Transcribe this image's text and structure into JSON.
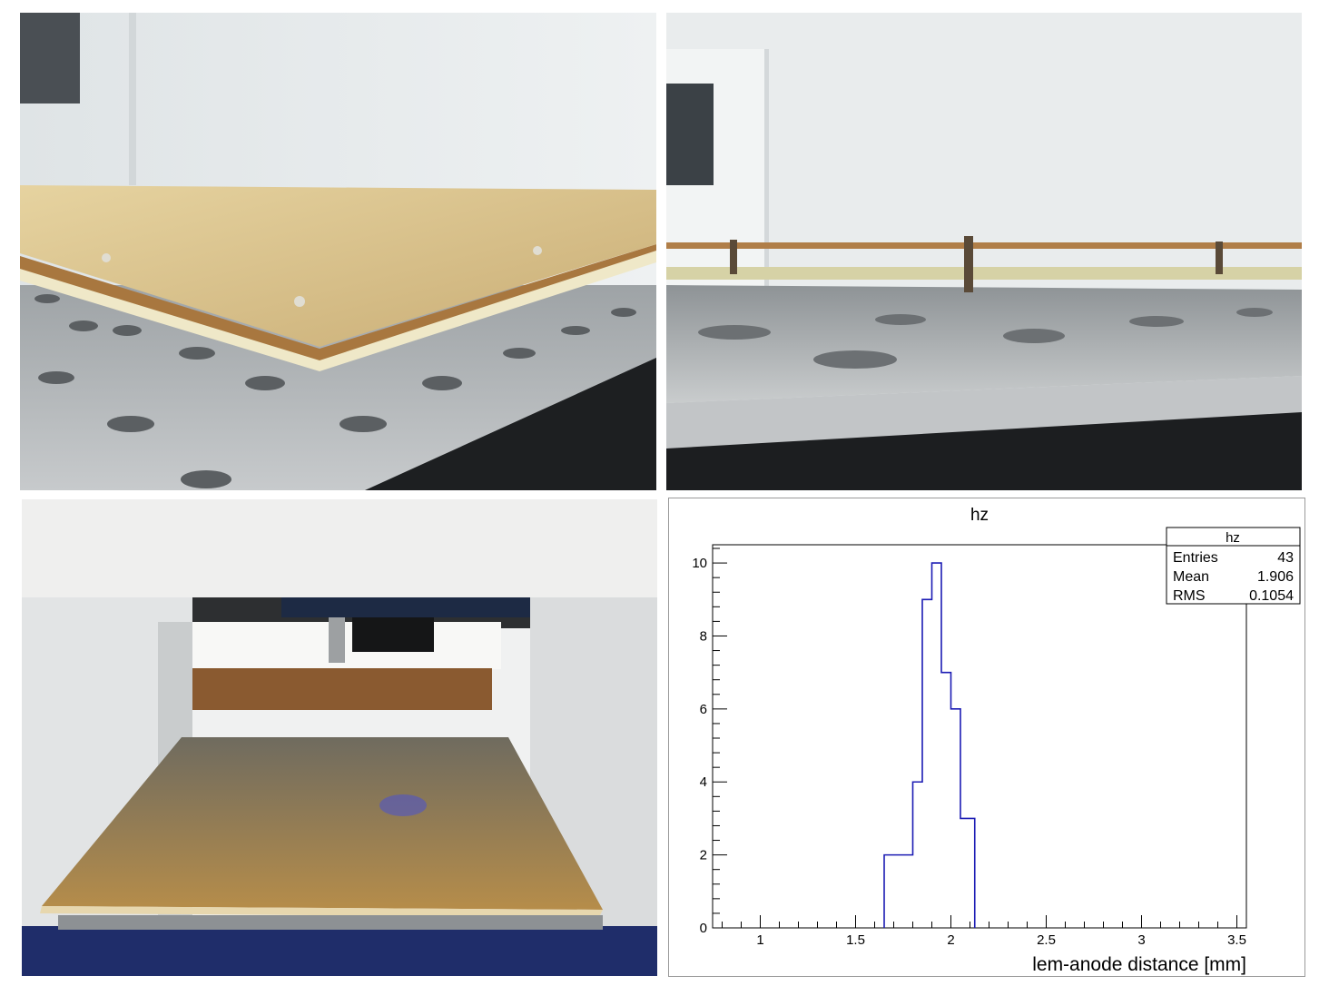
{
  "photos": [
    {
      "description_id": "lem-anode-corner-closeup"
    },
    {
      "description_id": "lem-anode-side-view"
    },
    {
      "description_id": "lem-anode-on-measuring-machine"
    }
  ],
  "chart_data": {
    "type": "histogram",
    "title": "hz",
    "xlabel": "lem-anode distance [mm]",
    "ylabel": "",
    "xlim": [
      0.75,
      3.55
    ],
    "ylim": [
      0,
      10.5
    ],
    "x_ticks": [
      "1",
      "1.5",
      "2",
      "2.5",
      "3",
      "3.5"
    ],
    "y_ticks": [
      "0",
      "2",
      "4",
      "6",
      "8",
      "10"
    ],
    "bin_edges": [
      1.65,
      1.725,
      1.8,
      1.85,
      1.9,
      1.95,
      2.0,
      2.05,
      2.125
    ],
    "values": [
      2,
      2,
      4,
      9,
      10,
      7,
      6,
      3
    ],
    "line_color": "#1c1cb4",
    "stats_box": {
      "title": "hz",
      "rows": [
        {
          "label": "Entries",
          "value": "43"
        },
        {
          "label": "Mean",
          "value": "1.906"
        },
        {
          "label": "RMS",
          "value": "0.1054"
        }
      ]
    }
  }
}
